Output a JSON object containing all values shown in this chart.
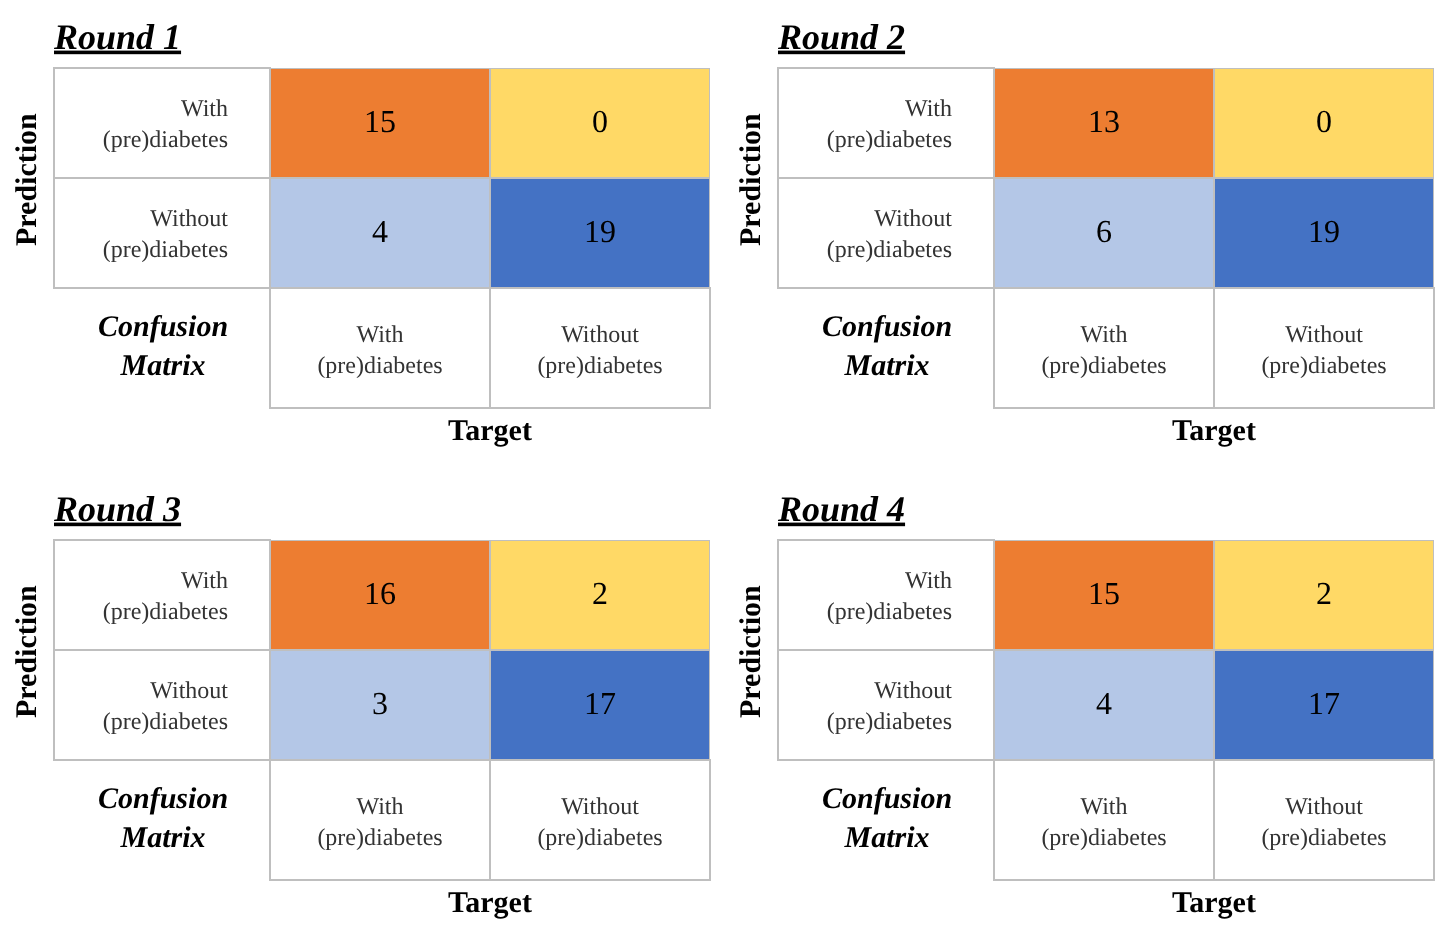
{
  "chart_data": [
    {
      "type": "heatmap",
      "title": "Round 1",
      "xlabel": "Target",
      "ylabel": "Prediction",
      "annotations": [
        "Confusion Matrix"
      ],
      "categories": [
        "With (pre)diabetes",
        "Without (pre)diabetes"
      ],
      "y_categories": [
        "With (pre)diabetes",
        "Without (pre)diabetes"
      ],
      "cells": [
        [
          15,
          0
        ],
        [
          4,
          19
        ]
      ],
      "colors": [
        [
          "#ed7d31",
          "#ffd966"
        ],
        [
          "#b4c7e7",
          "#4472c4"
        ]
      ],
      "data_labels": true
    },
    {
      "type": "heatmap",
      "title": "Round 2",
      "xlabel": "Target",
      "ylabel": "Prediction",
      "annotations": [
        "Confusion Matrix"
      ],
      "categories": [
        "With (pre)diabetes",
        "Without (pre)diabetes"
      ],
      "y_categories": [
        "With (pre)diabetes",
        "Without (pre)diabetes"
      ],
      "cells": [
        [
          13,
          0
        ],
        [
          6,
          19
        ]
      ],
      "colors": [
        [
          "#ed7d31",
          "#ffd966"
        ],
        [
          "#b4c7e7",
          "#4472c4"
        ]
      ],
      "data_labels": true
    },
    {
      "type": "heatmap",
      "title": "Round 3",
      "xlabel": "Target",
      "ylabel": "Prediction",
      "annotations": [
        "Confusion Matrix"
      ],
      "categories": [
        "With (pre)diabetes",
        "Without (pre)diabetes"
      ],
      "y_categories": [
        "With (pre)diabetes",
        "Without (pre)diabetes"
      ],
      "cells": [
        [
          16,
          2
        ],
        [
          3,
          17
        ]
      ],
      "colors": [
        [
          "#ed7d31",
          "#ffd966"
        ],
        [
          "#b4c7e7",
          "#4472c4"
        ]
      ],
      "data_labels": true
    },
    {
      "type": "heatmap",
      "title": "Round 4",
      "xlabel": "Target",
      "ylabel": "Prediction",
      "annotations": [
        "Confusion Matrix"
      ],
      "categories": [
        "With (pre)diabetes",
        "Without (pre)diabetes"
      ],
      "y_categories": [
        "With (pre)diabetes",
        "Without (pre)diabetes"
      ],
      "cells": [
        [
          15,
          2
        ],
        [
          4,
          17
        ]
      ],
      "colors": [
        [
          "#ed7d31",
          "#ffd966"
        ],
        [
          "#b4c7e7",
          "#4472c4"
        ]
      ],
      "data_labels": true
    }
  ]
}
